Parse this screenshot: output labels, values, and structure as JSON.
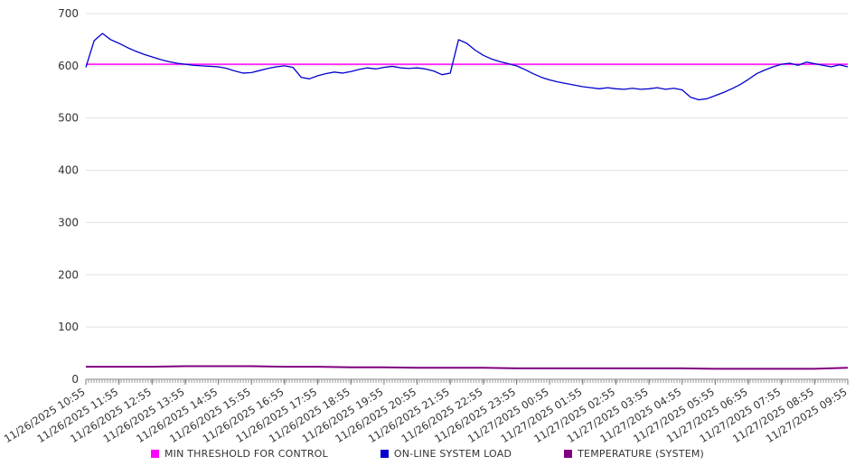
{
  "chart_data": {
    "type": "line",
    "title": "",
    "xlabel": "",
    "ylabel": "",
    "ylim": [
      0,
      700
    ],
    "yticks": [
      0,
      100,
      200,
      300,
      400,
      500,
      600,
      700
    ],
    "grid": "horizontal",
    "legend_position": "bottom",
    "x_labels": [
      "11/26/2025 10:55",
      "11/26/2025 11:55",
      "11/26/2025 12:55",
      "11/26/2025 13:55",
      "11/26/2025 14:55",
      "11/26/2025 15:55",
      "11/26/2025 16:55",
      "11/26/2025 17:55",
      "11/26/2025 18:55",
      "11/26/2025 19:55",
      "11/26/2025 20:55",
      "11/26/2025 21:55",
      "11/26/2025 22:55",
      "11/26/2025 23:55",
      "11/27/2025 00:55",
      "11/27/2025 01:55",
      "11/27/2025 02:55",
      "11/27/2025 03:55",
      "11/27/2025 04:55",
      "11/27/2025 05:55",
      "11/27/2025 06:55",
      "11/27/2025 07:55",
      "11/27/2025 08:55",
      "11/27/2025 09:55"
    ],
    "series": [
      {
        "name": "MIN THRESHOLD FOR CONTROL",
        "color": "#ff00ff",
        "stroke_width": 1.5,
        "values": [
          603,
          603
        ]
      },
      {
        "name": "ON-LINE SYSTEM LOAD",
        "color": "#0000cc",
        "stroke_width": 1.3,
        "values": [
          597,
          648,
          662,
          650,
          643,
          635,
          628,
          622,
          617,
          612,
          608,
          605,
          603,
          601,
          600,
          599,
          598,
          595,
          590,
          586,
          587,
          591,
          595,
          598,
          600,
          597,
          578,
          575,
          581,
          585,
          588,
          586,
          589,
          593,
          596,
          594,
          597,
          599,
          596,
          595,
          596,
          594,
          590,
          583,
          586,
          650,
          643,
          630,
          620,
          613,
          608,
          604,
          600,
          593,
          585,
          578,
          573,
          569,
          566,
          563,
          560,
          558,
          556,
          558,
          556,
          555,
          557,
          555,
          556,
          558,
          555,
          557,
          554,
          540,
          535,
          537,
          543,
          549,
          556,
          564,
          574,
          585,
          592,
          598,
          603,
          605,
          601,
          607,
          604,
          601,
          598,
          602,
          598
        ]
      },
      {
        "name": "TEMPERATURE (SYSTEM)",
        "color": "#800080",
        "stroke_width": 2,
        "values": [
          24,
          24,
          24,
          25,
          25,
          25,
          24,
          24,
          23,
          23,
          22,
          22,
          22,
          21,
          21,
          21,
          21,
          21,
          21,
          20,
          20,
          20,
          20,
          22
        ]
      }
    ]
  }
}
